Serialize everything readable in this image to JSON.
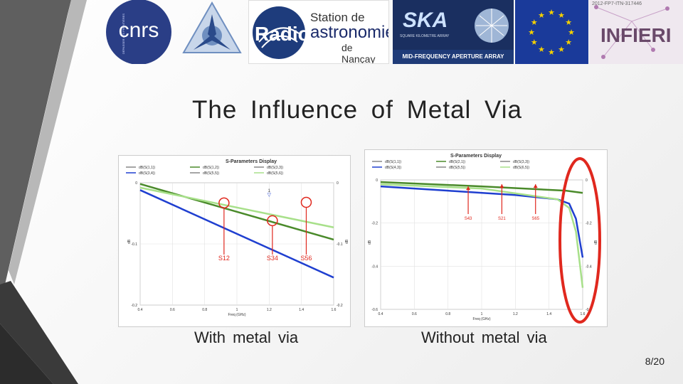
{
  "logos": {
    "cnrs": "cnrs",
    "cnrs_tagline": "DÉPASSER LES FRONTIÈRES",
    "nancay_station": "Station de",
    "nancay_radio": "Radio",
    "nancay_astronomie": "astronomie",
    "nancay_de": "de Nançay",
    "ska_name": "SKA",
    "ska_sub": "SQUARE KILOMETRE ARRAY",
    "ska_footer": "MID-FREQUENCY APERTURE ARRAY",
    "infieri": "INFIERI",
    "infieri_grant": "2012-FP7-ITN-317446"
  },
  "slide": {
    "title": "The Influence of Metal Via",
    "caption_left": "With metal via",
    "caption_right": "Without metal via",
    "page_number": "8/20"
  },
  "colors": {
    "highlight_red": "#e0281e",
    "accent_dark": "#3a3a3a",
    "accent_gray": "#9a9a9a",
    "series_blue": "#1f3fd0",
    "series_green": "#4a8a2a",
    "series_lightgreen": "#a8e08a"
  },
  "chart_data": [
    {
      "type": "line",
      "title": "S-Parameters Display",
      "xlabel": "Freq (GHz)",
      "ylabel": "dB",
      "xlim": [
        0.4,
        1.6
      ],
      "ylim": [
        -0.2,
        0
      ],
      "xticks": [
        "0.4",
        "0.6",
        "0.8",
        "1",
        "1.2",
        "1.4",
        "1.6"
      ],
      "yticks_left": [
        "0",
        "-0.1",
        "-0.2"
      ],
      "yticks_right": [
        "0",
        "-0.1",
        "-0.2"
      ],
      "legend": [
        "dB(S(1,1))",
        "dB(S(1,2))",
        "dB(S(3,3))",
        "dB(S(3,4))",
        "dB(S(5,5))",
        "dB(S(5,6))"
      ],
      "marker_label": "1",
      "series": [
        {
          "name": "dB(S(3,4))",
          "color": "#1f3fd0",
          "x": [
            0.4,
            1.6
          ],
          "y": [
            -0.012,
            -0.155
          ]
        },
        {
          "name": "dB(S(1,2))",
          "color": "#4a8a2a",
          "x": [
            0.4,
            1.6
          ],
          "y": [
            -0.002,
            -0.093
          ]
        },
        {
          "name": "dB(S(5,6))",
          "color": "#a8e08a",
          "x": [
            0.4,
            1.6
          ],
          "y": [
            -0.008,
            -0.073
          ]
        }
      ],
      "annotations": [
        "S12",
        "S34",
        "S56"
      ]
    },
    {
      "type": "line",
      "title": "S-Parameters Display",
      "xlabel": "Freq (GHz)",
      "ylabel": "dB",
      "xlim": [
        0.4,
        1.6
      ],
      "ylim": [
        -0.6,
        0
      ],
      "xticks": [
        "0.4",
        "0.6",
        "0.8",
        "1",
        "1.2",
        "1.4",
        "1.6"
      ],
      "yticks_left": [
        "0",
        "-0.2",
        "-0.4",
        "-0.6"
      ],
      "yticks_right": [
        "0",
        "-0.2",
        "-0.4",
        "-0.6"
      ],
      "legend": [
        "dB(S(1,1))",
        "dB(S(2,1))",
        "dB(S(3,3))",
        "dB(S(4,3))",
        "dB(S(5,5))",
        "dB(S(6,5))"
      ],
      "series": [
        {
          "name": "dB(S(4,3))",
          "color": "#1f3fd0",
          "x": [
            0.4,
            0.8,
            1.2,
            1.45,
            1.52,
            1.56,
            1.6
          ],
          "y": [
            -0.03,
            -0.05,
            -0.07,
            -0.09,
            -0.11,
            -0.18,
            -0.36
          ]
        },
        {
          "name": "dB(S(2,1))",
          "color": "#4a8a2a",
          "x": [
            0.4,
            1.0,
            1.5,
            1.6
          ],
          "y": [
            -0.01,
            -0.03,
            -0.05,
            -0.06
          ]
        },
        {
          "name": "dB(S(6,5))",
          "color": "#a8e08a",
          "x": [
            0.4,
            1.0,
            1.45,
            1.52,
            1.56,
            1.6
          ],
          "y": [
            -0.02,
            -0.04,
            -0.09,
            -0.13,
            -0.24,
            -0.5
          ]
        }
      ],
      "annotations": [
        "S43",
        "S21",
        "S65"
      ]
    }
  ]
}
